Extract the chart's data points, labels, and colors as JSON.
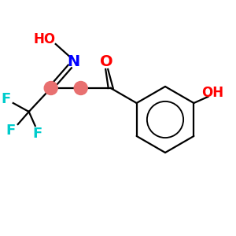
{
  "bg_color": "#ffffff",
  "bond_color": "#000000",
  "atom_colors": {
    "O_carbonyl": "#ff0000",
    "O_ho_right": "#ff0000",
    "HO_left": "#ff0000",
    "N": "#0000ff",
    "F": "#00cccc",
    "C_dot": "#e87070"
  },
  "figsize": [
    3.0,
    3.0
  ],
  "dpi": 100,
  "lw": 1.6,
  "dot_r": 8.5
}
